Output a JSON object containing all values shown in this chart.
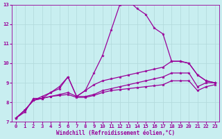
{
  "xlabel": "Windchill (Refroidissement éolien,°C)",
  "bg_color": "#c8eef0",
  "line_color": "#990099",
  "grid_color": "#b0d8da",
  "xlim": [
    -0.5,
    23.5
  ],
  "ylim": [
    7,
    13
  ],
  "xticks": [
    0,
    1,
    2,
    3,
    4,
    5,
    6,
    7,
    8,
    9,
    10,
    11,
    12,
    13,
    14,
    15,
    16,
    17,
    18,
    19,
    20,
    21,
    22,
    23
  ],
  "yticks": [
    7,
    8,
    9,
    10,
    11,
    12,
    13
  ],
  "lines": [
    {
      "x": [
        0,
        1,
        2,
        3,
        4,
        5,
        6,
        7,
        8,
        9,
        10,
        11,
        12,
        13,
        14,
        15,
        16,
        17,
        18,
        19,
        20,
        21,
        22,
        23
      ],
      "y": [
        7.2,
        7.5,
        8.2,
        8.2,
        8.5,
        8.8,
        9.3,
        8.3,
        8.6,
        9.5,
        10.4,
        11.7,
        13.0,
        13.2,
        12.8,
        12.5,
        11.8,
        11.5,
        10.1,
        10.1,
        10.0,
        9.4,
        9.1,
        9.0
      ]
    },
    {
      "x": [
        0,
        1,
        2,
        3,
        4,
        5,
        6,
        7,
        8,
        9,
        10,
        11,
        12,
        13,
        14,
        15,
        16,
        17,
        18,
        19,
        20,
        21,
        22,
        23
      ],
      "y": [
        7.2,
        7.6,
        8.1,
        8.3,
        8.5,
        8.7,
        9.3,
        8.3,
        8.6,
        8.9,
        9.1,
        9.2,
        9.3,
        9.4,
        9.5,
        9.6,
        9.7,
        9.8,
        10.1,
        10.1,
        10.0,
        9.4,
        9.1,
        9.0
      ]
    },
    {
      "x": [
        0,
        1,
        2,
        3,
        4,
        5,
        6,
        7,
        8,
        9,
        10,
        11,
        12,
        13,
        14,
        15,
        16,
        17,
        18,
        19,
        20,
        21,
        22,
        23
      ],
      "y": [
        7.2,
        7.6,
        8.1,
        8.2,
        8.3,
        8.4,
        8.5,
        8.3,
        8.3,
        8.4,
        8.6,
        8.7,
        8.8,
        8.9,
        9.0,
        9.1,
        9.2,
        9.3,
        9.5,
        9.5,
        9.5,
        8.8,
        9.0,
        9.0
      ]
    },
    {
      "x": [
        0,
        1,
        2,
        3,
        4,
        5,
        6,
        7,
        8,
        9,
        10,
        11,
        12,
        13,
        14,
        15,
        16,
        17,
        18,
        19,
        20,
        21,
        22,
        23
      ],
      "y": [
        7.2,
        7.6,
        8.1,
        8.2,
        8.3,
        8.35,
        8.4,
        8.25,
        8.25,
        8.35,
        8.5,
        8.6,
        8.65,
        8.7,
        8.75,
        8.8,
        8.85,
        8.9,
        9.1,
        9.1,
        9.1,
        8.6,
        8.8,
        8.9
      ]
    }
  ]
}
